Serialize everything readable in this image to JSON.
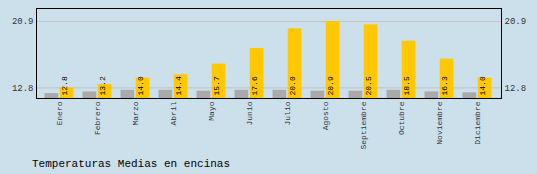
{
  "chart_data": {
    "type": "bar",
    "title": "Temperaturas Medias en encinas",
    "categories": [
      "Enero",
      "Febrero",
      "Marzo",
      "Abril",
      "Mayo",
      "Junio",
      "Julio",
      "Agosto",
      "Septiembre",
      "Octubre",
      "Noviembre",
      "Diciembre"
    ],
    "series": [
      {
        "color": "#AAAAAA",
        "values": [
          12.1,
          12.3,
          12.5,
          12.5,
          12.4,
          12.5,
          12.5,
          12.4,
          12.4,
          12.5,
          12.3,
          12.2
        ]
      },
      {
        "color": "#FFC800",
        "values": [
          12.8,
          13.2,
          14.0,
          14.4,
          15.7,
          17.6,
          20.0,
          20.9,
          20.5,
          18.5,
          16.3,
          14.0
        ],
        "value_labels": [
          "12.8",
          "13.2",
          "14.0",
          "14.4",
          "15.7",
          "17.6",
          "20.0",
          "20.9",
          "20.5",
          "18.5",
          "16.3",
          "14.0"
        ],
        "data_labels": true
      }
    ],
    "ylim": [
      11.5,
      22.5
    ],
    "yticks": [
      12.8,
      20.9
    ],
    "y2lim": [
      11.5,
      22.5
    ],
    "y2ticks": [
      12.8,
      20.9
    ],
    "grid": true
  }
}
